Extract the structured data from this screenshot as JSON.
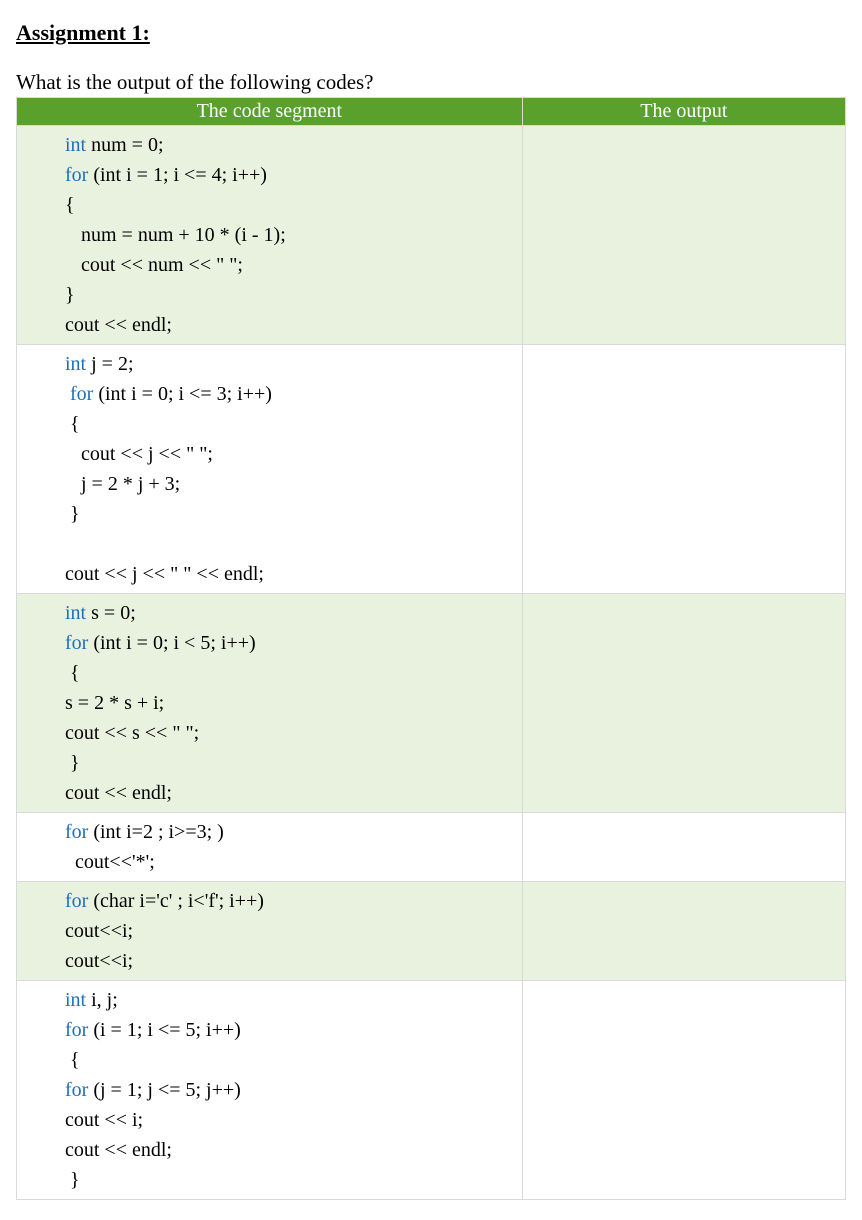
{
  "title": "Assignment 1:",
  "question": "What is the output of the following codes?",
  "headers": {
    "code": "The code segment",
    "output": "The output"
  },
  "colors": {
    "header_bg": "#5aa02c",
    "header_text": "#ffffff",
    "row_alt_bg": "#e9f2df",
    "row_plain_bg": "#ffffff",
    "keyword_color": "#1d6fbd",
    "border_color": "#d9d9d9"
  },
  "rows": [
    {
      "bg": "alt",
      "code": {
        "l1_kw": "int",
        "l1_rest": " num = 0;",
        "l2_kw": "for",
        "l2_rest": " (int i = 1; i <= 4; i++)",
        "l3": "{",
        "l4": "num = num + 10 * (i - 1);",
        "l5": "cout << num << \" \";",
        "l6": "}",
        "l7": "cout << endl;"
      },
      "output": ""
    },
    {
      "bg": "plain",
      "code": {
        "l1_kw": "int",
        "l1_rest": " j = 2;",
        "l2_kw": "for",
        "l2_rest": " (int i = 0; i <= 3; i++)",
        "l3": "{",
        "l4": "cout << j << \" \";",
        "l5": "j = 2 * j + 3;",
        "l6": "}",
        "blank": " ",
        "l7": "cout << j << \" \" << endl;"
      },
      "output": ""
    },
    {
      "bg": "alt",
      "code": {
        "l1_kw": "int",
        "l1_rest": " s = 0;",
        "l2_kw": "for",
        "l2_rest": " (int i = 0; i < 5; i++)",
        "l3": "{",
        "l4": "s = 2 * s + i;",
        "l5": "cout << s << \" \";",
        "l6": "}",
        "l7": "cout << endl;"
      },
      "output": ""
    },
    {
      "bg": "plain",
      "code": {
        "l1_kw": "for",
        "l1_rest": " (int i=2 ; i>=3;   )",
        "l2": "cout<<'*';"
      },
      "output": ""
    },
    {
      "bg": "alt",
      "code": {
        "l1_kw": "for",
        "l1_rest": " (char i='c' ; i<'f'; i++)",
        "l2": "cout<<i;",
        "l3": "cout<<i;"
      },
      "output": ""
    },
    {
      "bg": "plain",
      "code": {
        "l1_kw": "int",
        "l1_rest": " i, j;",
        "l2_kw": "for",
        "l2_rest": " (i = 1; i <= 5; i++)",
        "l3": "{",
        "l4_kw": "for",
        "l4_rest": " (j = 1; j <= 5; j++)",
        "l5": "cout << i;",
        "l6": "cout << endl;",
        "l7": "}"
      },
      "output": ""
    }
  ]
}
